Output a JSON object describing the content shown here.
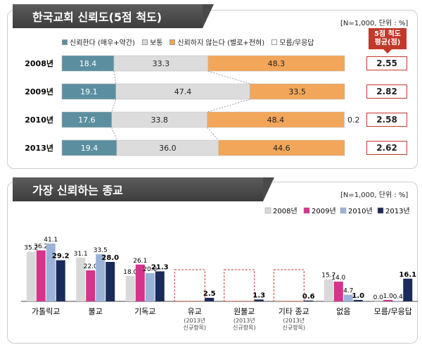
{
  "chart1": {
    "title": "한국교회 신뢰도(5점 척도)",
    "unit_note": "[N=1,000, 단위 : %]",
    "avg_header": [
      "5점 척도",
      "평균(점)"
    ],
    "legend": [
      {
        "label": "신뢰한다 (매우+약간)",
        "color": "#5b8fa0"
      },
      {
        "label": "보통",
        "color": "#dcdcdc"
      },
      {
        "label": "신뢰하지 않는다 (별로+전혀)",
        "color": "#f2a65a"
      },
      {
        "label": "모름/무응답",
        "color": "#ffffff"
      }
    ],
    "avg_values": [
      "2.55",
      "2.82",
      "2.58",
      "2.62"
    ]
  },
  "chart2": {
    "title": "가장 신뢰하는 종교",
    "unit_note": "[N=1,000, 단위 : %]",
    "new_item_note": "(2013년 신규항목)"
  },
  "chart_data": [
    {
      "type": "bar",
      "orientation": "horizontal-stacked",
      "title": "한국교회 신뢰도(5점 척도)",
      "categories": [
        "2008년",
        "2009년",
        "2010년",
        "2013년"
      ],
      "series": [
        {
          "name": "신뢰한다 (매우+약간)",
          "color": "#5b8fa0",
          "values": [
            18.4,
            19.1,
            17.6,
            19.4
          ]
        },
        {
          "name": "보통",
          "color": "#dcdcdc",
          "values": [
            33.3,
            47.4,
            33.8,
            36.0
          ]
        },
        {
          "name": "신뢰하지 않는다 (별로+전혀)",
          "color": "#f2a65a",
          "values": [
            48.3,
            33.5,
            48.4,
            44.6
          ]
        },
        {
          "name": "모름/무응답",
          "color": "#ffffff",
          "values": [
            null,
            null,
            0.2,
            null
          ]
        }
      ],
      "value_labels": [
        [
          "18.4",
          "33.3",
          "48.3",
          ""
        ],
        [
          "19.1",
          "47.4",
          "33.5",
          ""
        ],
        [
          "17.6",
          "33.8",
          "48.4",
          "0.2"
        ],
        [
          "19.4",
          "36.0",
          "44.6",
          ""
        ]
      ],
      "xlim": [
        0,
        100
      ]
    },
    {
      "type": "bar",
      "title": "가장 신뢰하는 종교",
      "categories": [
        "가톨릭교",
        "불교",
        "기독교",
        "유교",
        "원불교",
        "기타 종교",
        "없음",
        "모름/무응답"
      ],
      "new_items": [
        false,
        false,
        false,
        true,
        true,
        true,
        false,
        false
      ],
      "series": [
        {
          "name": "2008년",
          "color": "#d9d9d9",
          "values": [
            35.2,
            31.1,
            18.0,
            null,
            null,
            null,
            15.7,
            0.0
          ]
        },
        {
          "name": "2009년",
          "color": "#d6338a",
          "values": [
            36.2,
            22.0,
            26.1,
            null,
            null,
            null,
            14.0,
            1.0
          ]
        },
        {
          "name": "2010년",
          "color": "#9bb3d9",
          "values": [
            41.1,
            33.5,
            20.0,
            null,
            null,
            null,
            4.7,
            0.4
          ]
        },
        {
          "name": "2013년",
          "color": "#1a2a5a",
          "values": [
            29.2,
            28.0,
            21.3,
            2.5,
            1.3,
            0.6,
            1.0,
            16.1
          ]
        }
      ],
      "ylim": [
        0,
        45
      ]
    }
  ]
}
